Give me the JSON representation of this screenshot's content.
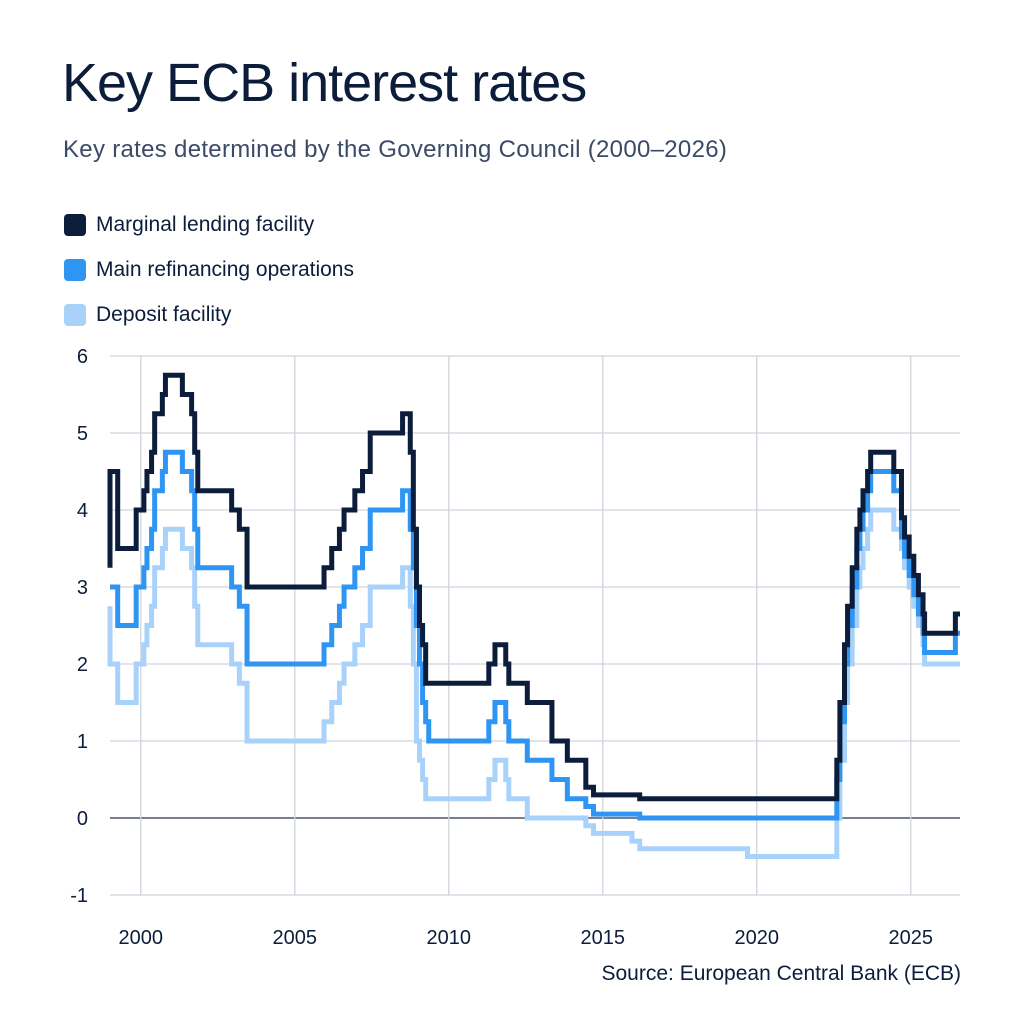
{
  "header": {
    "title": "Key ECB interest rates",
    "subtitle": "Key rates determined by the Governing Council (2000–2026)"
  },
  "footer": {
    "source": "Source: European Central Bank (ECB)"
  },
  "colors": {
    "marginal": "#0b1d3a",
    "main": "#2f95f2",
    "deposit": "#a9d2fb",
    "grid": "#cfd4dc",
    "zero": "#4a5568"
  },
  "chart_data": {
    "type": "line",
    "step": true,
    "title": "Key ECB interest rates",
    "subtitle": "Key rates determined by the Governing Council (2000–2026)",
    "xlabel": "",
    "ylabel": "",
    "xlim": [
      1999.0,
      2026.6
    ],
    "ylim": [
      -1,
      6
    ],
    "x_ticks": [
      2000,
      2005,
      2010,
      2015,
      2020,
      2025
    ],
    "y_ticks": [
      -1,
      0,
      1,
      2,
      3,
      4,
      5,
      6
    ],
    "grid": true,
    "legend_position": "top-left",
    "series": [
      {
        "name": "Marginal lending facility",
        "color": "#0b1d3a",
        "points": [
          [
            1999.0,
            3.25
          ],
          [
            1999.0,
            4.5
          ],
          [
            1999.25,
            3.5
          ],
          [
            1999.85,
            4.0
          ],
          [
            2000.1,
            4.25
          ],
          [
            2000.2,
            4.5
          ],
          [
            2000.35,
            4.75
          ],
          [
            2000.45,
            5.25
          ],
          [
            2000.7,
            5.5
          ],
          [
            2000.8,
            5.75
          ],
          [
            2001.35,
            5.5
          ],
          [
            2001.65,
            5.25
          ],
          [
            2001.75,
            4.75
          ],
          [
            2001.85,
            4.25
          ],
          [
            2002.95,
            4.0
          ],
          [
            2003.2,
            3.75
          ],
          [
            2003.45,
            3.0
          ],
          [
            2005.95,
            3.25
          ],
          [
            2006.2,
            3.5
          ],
          [
            2006.45,
            3.75
          ],
          [
            2006.6,
            4.0
          ],
          [
            2006.95,
            4.25
          ],
          [
            2007.2,
            4.5
          ],
          [
            2007.45,
            5.0
          ],
          [
            2008.5,
            5.25
          ],
          [
            2008.75,
            4.75
          ],
          [
            2008.85,
            3.75
          ],
          [
            2008.95,
            3.0
          ],
          [
            2009.05,
            2.5
          ],
          [
            2009.15,
            2.25
          ],
          [
            2009.25,
            1.75
          ],
          [
            2011.3,
            2.0
          ],
          [
            2011.5,
            2.25
          ],
          [
            2011.85,
            2.0
          ],
          [
            2011.95,
            1.75
          ],
          [
            2012.55,
            1.5
          ],
          [
            2013.35,
            1.0
          ],
          [
            2013.85,
            0.75
          ],
          [
            2014.45,
            0.4
          ],
          [
            2014.7,
            0.3
          ],
          [
            2015.0,
            0.3
          ],
          [
            2016.2,
            0.25
          ],
          [
            2022.55,
            0.25
          ],
          [
            2022.6,
            0.75
          ],
          [
            2022.7,
            1.5
          ],
          [
            2022.85,
            2.25
          ],
          [
            2022.95,
            2.75
          ],
          [
            2023.1,
            3.25
          ],
          [
            2023.25,
            3.75
          ],
          [
            2023.35,
            4.0
          ],
          [
            2023.45,
            4.25
          ],
          [
            2023.6,
            4.5
          ],
          [
            2023.7,
            4.75
          ],
          [
            2024.45,
            4.5
          ],
          [
            2024.7,
            3.9
          ],
          [
            2024.8,
            3.65
          ],
          [
            2024.95,
            3.4
          ],
          [
            2025.1,
            3.15
          ],
          [
            2025.25,
            2.9
          ],
          [
            2025.4,
            2.65
          ],
          [
            2025.45,
            2.4
          ],
          [
            2026.45,
            2.65
          ]
        ]
      },
      {
        "name": "Main refinancing operations",
        "color": "#2f95f2",
        "points": [
          [
            1999.0,
            3.0
          ],
          [
            1999.25,
            2.5
          ],
          [
            1999.85,
            3.0
          ],
          [
            2000.1,
            3.25
          ],
          [
            2000.2,
            3.5
          ],
          [
            2000.35,
            3.75
          ],
          [
            2000.45,
            4.25
          ],
          [
            2000.7,
            4.5
          ],
          [
            2000.8,
            4.75
          ],
          [
            2001.35,
            4.5
          ],
          [
            2001.65,
            4.25
          ],
          [
            2001.75,
            3.75
          ],
          [
            2001.85,
            3.25
          ],
          [
            2002.95,
            3.0
          ],
          [
            2003.2,
            2.75
          ],
          [
            2003.45,
            2.0
          ],
          [
            2005.95,
            2.25
          ],
          [
            2006.2,
            2.5
          ],
          [
            2006.45,
            2.75
          ],
          [
            2006.6,
            3.0
          ],
          [
            2006.95,
            3.25
          ],
          [
            2007.2,
            3.5
          ],
          [
            2007.45,
            4.0
          ],
          [
            2008.5,
            4.25
          ],
          [
            2008.75,
            3.75
          ],
          [
            2008.85,
            3.25
          ],
          [
            2008.95,
            2.5
          ],
          [
            2009.05,
            2.0
          ],
          [
            2009.15,
            1.5
          ],
          [
            2009.25,
            1.25
          ],
          [
            2009.35,
            1.0
          ],
          [
            2011.3,
            1.25
          ],
          [
            2011.5,
            1.5
          ],
          [
            2011.85,
            1.25
          ],
          [
            2011.95,
            1.0
          ],
          [
            2012.55,
            0.75
          ],
          [
            2013.35,
            0.5
          ],
          [
            2013.85,
            0.25
          ],
          [
            2014.45,
            0.15
          ],
          [
            2014.7,
            0.05
          ],
          [
            2016.2,
            0.0
          ],
          [
            2022.55,
            0.0
          ],
          [
            2022.6,
            0.5
          ],
          [
            2022.7,
            1.25
          ],
          [
            2022.85,
            2.0
          ],
          [
            2022.95,
            2.5
          ],
          [
            2023.1,
            3.0
          ],
          [
            2023.25,
            3.5
          ],
          [
            2023.35,
            3.75
          ],
          [
            2023.45,
            4.0
          ],
          [
            2023.6,
            4.25
          ],
          [
            2023.7,
            4.5
          ],
          [
            2024.45,
            4.25
          ],
          [
            2024.7,
            3.65
          ],
          [
            2024.8,
            3.4
          ],
          [
            2024.95,
            3.15
          ],
          [
            2025.1,
            2.9
          ],
          [
            2025.25,
            2.65
          ],
          [
            2025.4,
            2.4
          ],
          [
            2025.45,
            2.15
          ],
          [
            2026.45,
            2.4
          ]
        ]
      },
      {
        "name": "Deposit facility",
        "color": "#a9d2fb",
        "points": [
          [
            1999.0,
            2.75
          ],
          [
            1999.0,
            2.0
          ],
          [
            1999.25,
            1.5
          ],
          [
            1999.85,
            2.0
          ],
          [
            2000.1,
            2.25
          ],
          [
            2000.2,
            2.5
          ],
          [
            2000.35,
            2.75
          ],
          [
            2000.45,
            3.25
          ],
          [
            2000.7,
            3.5
          ],
          [
            2000.8,
            3.75
          ],
          [
            2001.35,
            3.5
          ],
          [
            2001.65,
            3.25
          ],
          [
            2001.75,
            2.75
          ],
          [
            2001.85,
            2.25
          ],
          [
            2002.95,
            2.0
          ],
          [
            2003.2,
            1.75
          ],
          [
            2003.45,
            1.0
          ],
          [
            2005.95,
            1.25
          ],
          [
            2006.2,
            1.5
          ],
          [
            2006.45,
            1.75
          ],
          [
            2006.6,
            2.0
          ],
          [
            2006.95,
            2.25
          ],
          [
            2007.2,
            2.5
          ],
          [
            2007.45,
            3.0
          ],
          [
            2008.5,
            3.25
          ],
          [
            2008.75,
            2.75
          ],
          [
            2008.85,
            2.0
          ],
          [
            2008.95,
            1.0
          ],
          [
            2009.05,
            0.75
          ],
          [
            2009.15,
            0.5
          ],
          [
            2009.25,
            0.25
          ],
          [
            2011.3,
            0.5
          ],
          [
            2011.5,
            0.75
          ],
          [
            2011.85,
            0.5
          ],
          [
            2011.95,
            0.25
          ],
          [
            2012.55,
            0.0
          ],
          [
            2014.45,
            -0.1
          ],
          [
            2014.7,
            -0.2
          ],
          [
            2015.95,
            -0.3
          ],
          [
            2016.2,
            -0.4
          ],
          [
            2019.7,
            -0.5
          ],
          [
            2022.55,
            -0.5
          ],
          [
            2022.6,
            0.0
          ],
          [
            2022.7,
            0.75
          ],
          [
            2022.85,
            1.5
          ],
          [
            2022.95,
            2.0
          ],
          [
            2023.1,
            2.5
          ],
          [
            2023.25,
            3.0
          ],
          [
            2023.35,
            3.25
          ],
          [
            2023.45,
            3.5
          ],
          [
            2023.6,
            3.75
          ],
          [
            2023.7,
            4.0
          ],
          [
            2024.45,
            3.75
          ],
          [
            2024.7,
            3.5
          ],
          [
            2024.8,
            3.25
          ],
          [
            2024.95,
            3.0
          ],
          [
            2025.1,
            2.75
          ],
          [
            2025.25,
            2.5
          ],
          [
            2025.4,
            2.25
          ],
          [
            2025.45,
            2.0
          ]
        ]
      }
    ]
  }
}
